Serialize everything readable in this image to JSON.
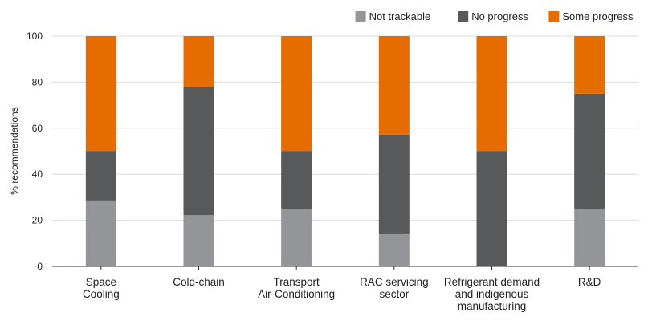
{
  "chart_data": {
    "type": "bar",
    "stacked": true,
    "categories": [
      [
        "Space",
        "Cooling"
      ],
      [
        "Cold-chain"
      ],
      [
        "Transport",
        "Air-Conditioning"
      ],
      [
        "RAC servicing",
        "sector"
      ],
      [
        "Refrigerant demand",
        "and indigenous",
        "manufacturing"
      ],
      [
        "R&D"
      ]
    ],
    "series": [
      {
        "name": "Not trackable",
        "color": "#939598",
        "values": [
          28.6,
          22.2,
          25,
          14.3,
          0,
          25
        ]
      },
      {
        "name": "No progress",
        "color": "#58595b",
        "values": [
          21.4,
          55.6,
          25,
          42.9,
          50,
          50
        ]
      },
      {
        "name": "Some progress",
        "color": "#e66c00",
        "values": [
          50,
          22.2,
          50,
          42.8,
          50,
          25
        ]
      }
    ],
    "ylabel": "% recommendations",
    "ylim": [
      0,
      100
    ],
    "yticks": [
      0,
      20,
      40,
      60,
      80,
      100
    ],
    "grid": true,
    "legend_position": "top-right"
  }
}
